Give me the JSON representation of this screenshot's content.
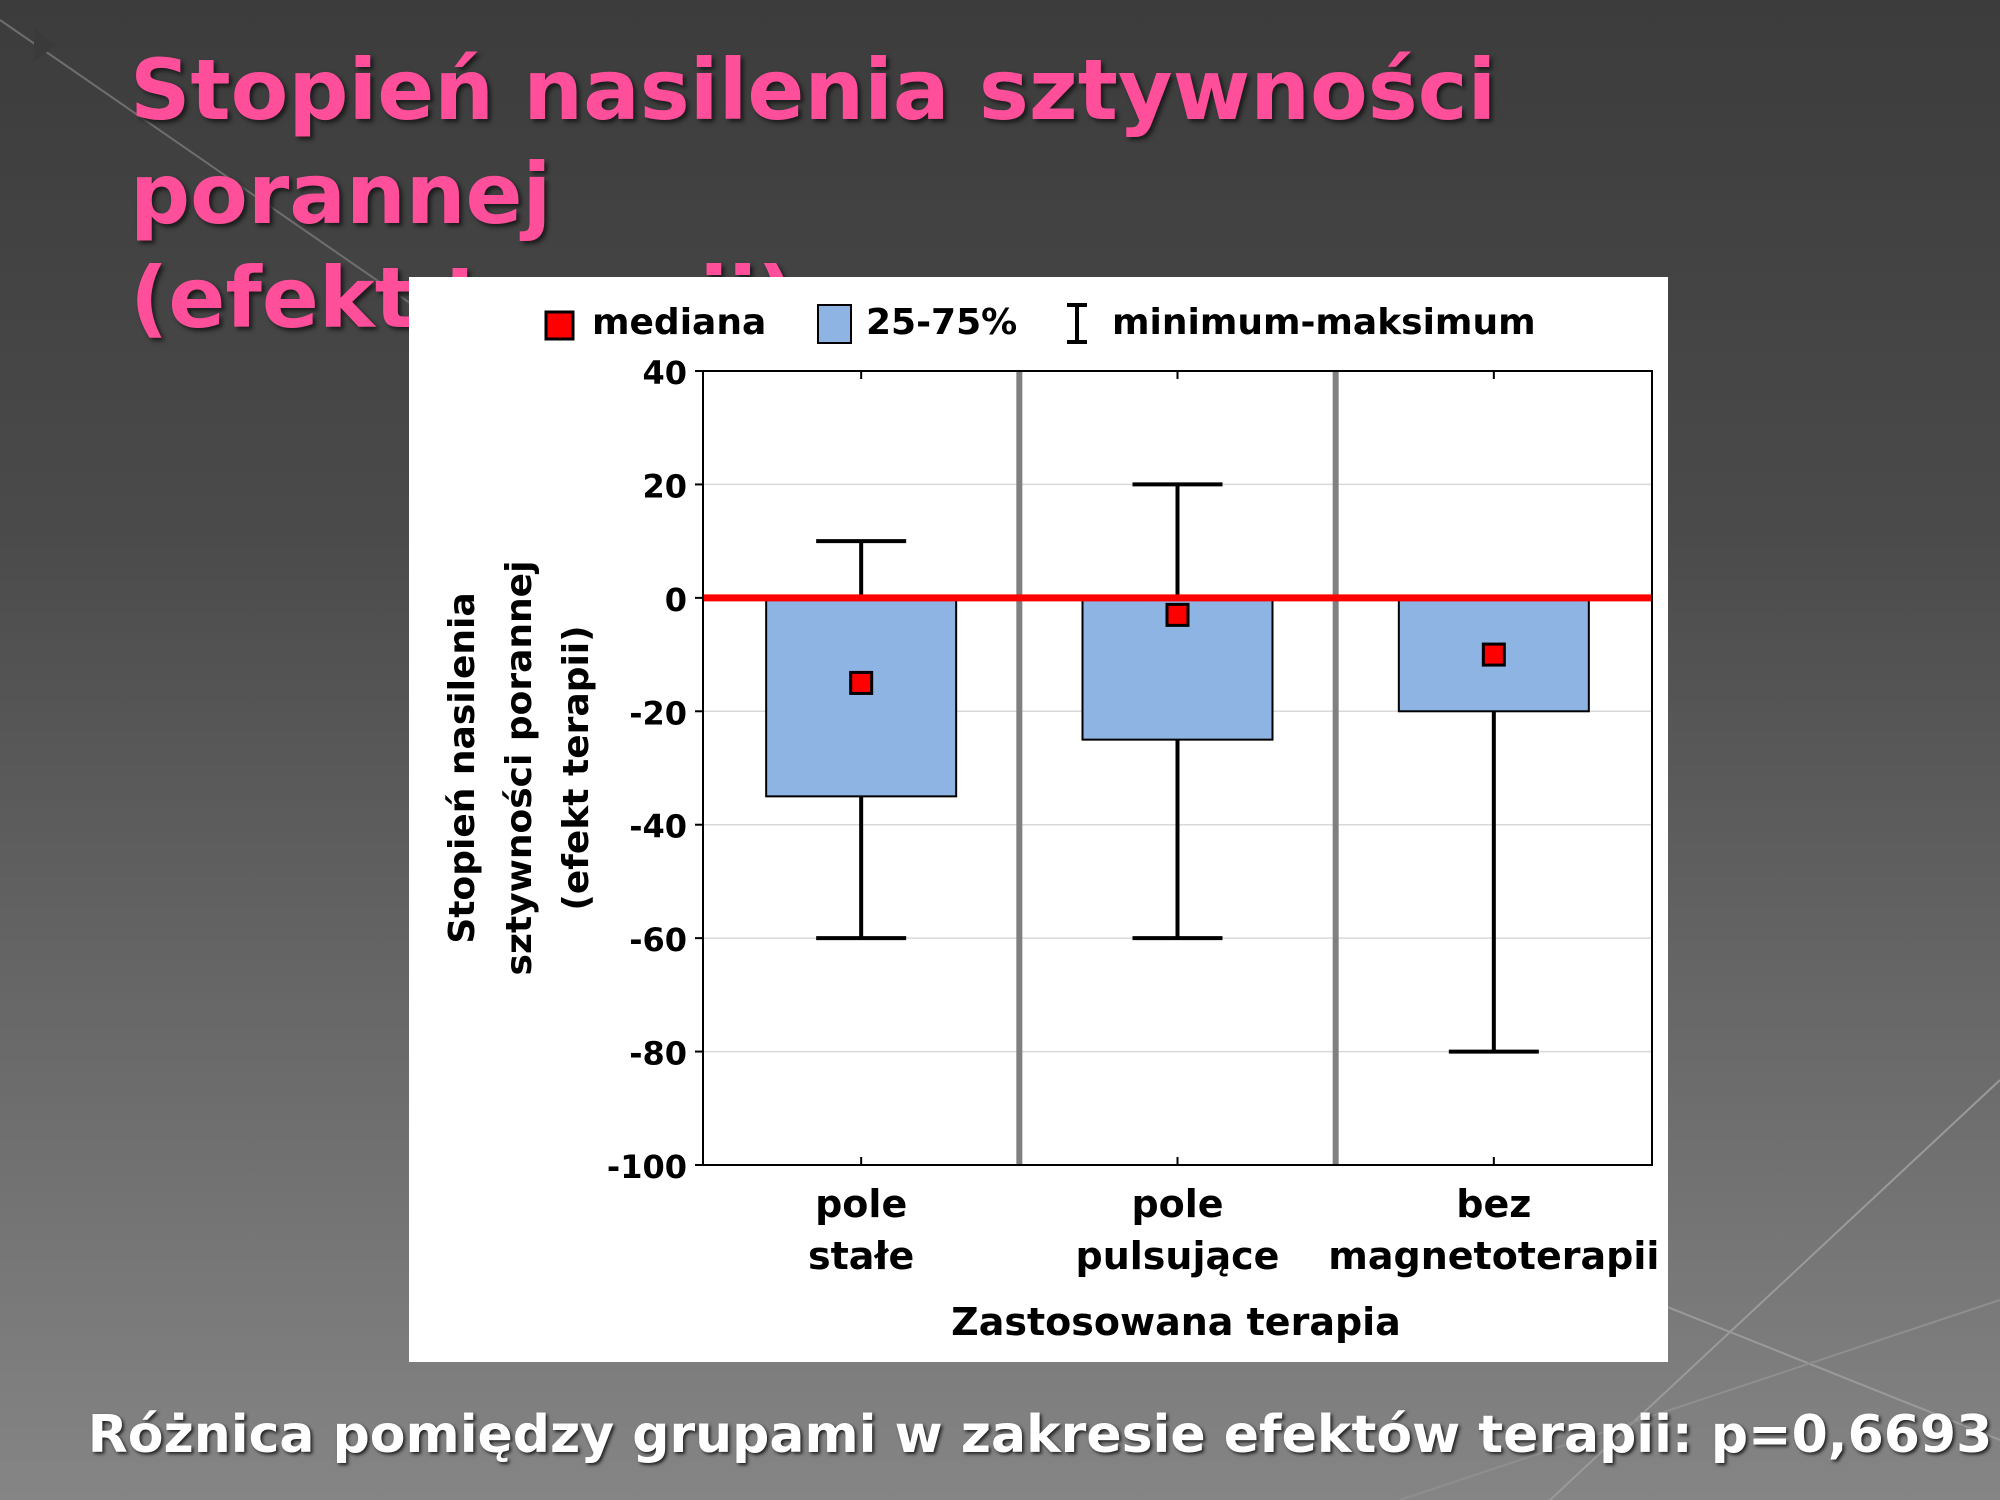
{
  "slide": {
    "title_line1": "Stopień nasilenia sztywności porannej",
    "title_line2": "(efekt terapii)",
    "footer": "Różnica pomiędzy grupami w zakresie efektów terapii: p=0,6693",
    "title_color": "#ff4f9a"
  },
  "chart_data": {
    "type": "boxplot",
    "legend": {
      "median": "mediana",
      "box": "25-75%",
      "whisker": "minimum-maksimum",
      "placement": "top"
    },
    "ylabel_lines": [
      "Stopień nasilenia",
      "sztywności porannej",
      "(efekt terapii)"
    ],
    "xlabel": "Zastosowana terapia",
    "ylim": [
      -100,
      40
    ],
    "yticks": [
      "40",
      "20",
      "0",
      "-20",
      "-40",
      "-60",
      "-80",
      "-100"
    ],
    "ytick_values": [
      40,
      20,
      0,
      -20,
      -40,
      -60,
      -80,
      -100
    ],
    "reference_line": 0,
    "grid": true,
    "colors": {
      "box": "#8eb4e3",
      "median": "#ff0000",
      "reference": "#ff0000"
    },
    "categories": [
      {
        "label_lines": [
          "pole",
          "stałe"
        ],
        "median": -15,
        "q1": -35,
        "q3": 0,
        "min": -60,
        "max": 10
      },
      {
        "label_lines": [
          "pole",
          "pulsujące"
        ],
        "median": -3,
        "q1": -25,
        "q3": 0,
        "min": -60,
        "max": 20
      },
      {
        "label_lines": [
          "bez",
          "magnetoterapii"
        ],
        "median": -10,
        "q1": -20,
        "q3": 0,
        "min": -80,
        "max": 0
      }
    ]
  }
}
